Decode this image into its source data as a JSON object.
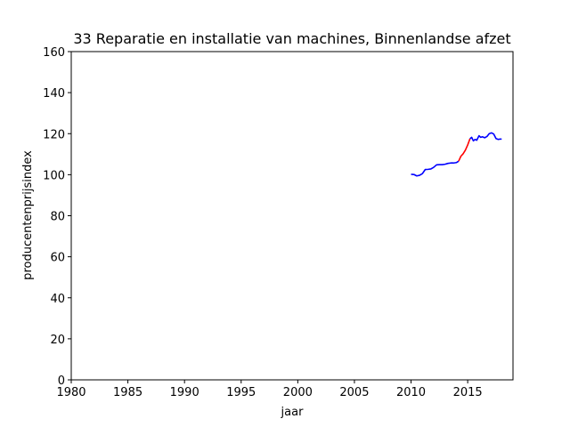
{
  "chart_data": {
    "type": "line",
    "title": "33 Reparatie en installatie van machines, Binnenlandse afzet",
    "xlabel": "jaar",
    "ylabel": "producentenprijsindex",
    "xlim": [
      1980,
      2019
    ],
    "ylim": [
      0,
      160
    ],
    "xticks": [
      1980,
      1985,
      1990,
      1995,
      2000,
      2005,
      2010,
      2015
    ],
    "yticks": [
      0,
      20,
      40,
      60,
      80,
      100,
      120,
      140,
      160
    ],
    "grid": false,
    "series": [
      {
        "color": "#0000ff",
        "x": [
          2010.0,
          2010.25,
          2010.5,
          2010.75,
          2011.0,
          2011.25,
          2011.5,
          2011.75,
          2012.0,
          2012.25,
          2012.5,
          2012.75,
          2013.0,
          2013.25,
          2013.5,
          2013.75,
          2014.0,
          2014.2
        ],
        "y": [
          100.2,
          100.1,
          99.4,
          99.7,
          100.5,
          102.5,
          102.6,
          102.8,
          103.6,
          104.8,
          104.9,
          104.9,
          105.1,
          105.5,
          105.7,
          105.7,
          105.9,
          106.6
        ]
      },
      {
        "color": "#ff0000",
        "x": [
          2014.2,
          2014.4,
          2014.6,
          2014.8,
          2015.0,
          2015.2
        ],
        "y": [
          106.6,
          109.0,
          110.2,
          112.0,
          114.5,
          117.5
        ]
      },
      {
        "color": "#0000ff",
        "x": [
          2015.2,
          2015.35,
          2015.5,
          2015.65,
          2015.8,
          2016.0,
          2016.15,
          2016.3,
          2016.5,
          2016.7,
          2016.9,
          2017.1,
          2017.3,
          2017.5,
          2017.7,
          2017.9,
          2018.0
        ],
        "y": [
          117.5,
          118.2,
          116.5,
          117.2,
          116.8,
          119.0,
          118.2,
          118.5,
          118.0,
          118.6,
          120.0,
          120.4,
          119.8,
          117.6,
          117.2,
          117.4,
          117.3
        ]
      }
    ]
  }
}
